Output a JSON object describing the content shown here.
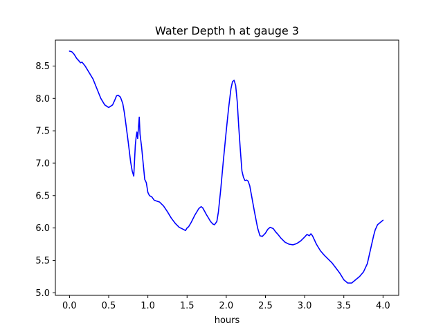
{
  "chart_data": {
    "type": "line",
    "title": "Water Depth h at gauge 3",
    "xlabel": "hours",
    "ylabel": "",
    "xlim": [
      -0.18,
      4.2
    ],
    "ylim": [
      4.96,
      8.9
    ],
    "grid": false,
    "legend": "none",
    "x_ticks": [
      0.0,
      0.5,
      1.0,
      1.5,
      2.0,
      2.5,
      3.0,
      3.5,
      4.0
    ],
    "x_tick_labels": [
      "0.0",
      "0.5",
      "1.0",
      "1.5",
      "2.0",
      "2.5",
      "3.0",
      "3.5",
      "4.0"
    ],
    "y_ticks": [
      5.0,
      5.5,
      6.0,
      6.5,
      7.0,
      7.5,
      8.0,
      8.5
    ],
    "y_tick_labels": [
      "5.0",
      "5.5",
      "6.0",
      "6.5",
      "7.0",
      "7.5",
      "8.0",
      "8.5"
    ],
    "series": [
      {
        "color": "#0000ff",
        "x": [
          0.0,
          0.03,
          0.06,
          0.09,
          0.12,
          0.14,
          0.16,
          0.18,
          0.2,
          0.25,
          0.3,
          0.35,
          0.4,
          0.45,
          0.5,
          0.55,
          0.58,
          0.6,
          0.62,
          0.65,
          0.68,
          0.7,
          0.72,
          0.75,
          0.78,
          0.8,
          0.82,
          0.84,
          0.85,
          0.86,
          0.87,
          0.88,
          0.89,
          0.9,
          0.91,
          0.92,
          0.94,
          0.96,
          0.98,
          1.0,
          1.02,
          1.05,
          1.08,
          1.1,
          1.15,
          1.2,
          1.25,
          1.3,
          1.35,
          1.4,
          1.45,
          1.48,
          1.5,
          1.52,
          1.55,
          1.6,
          1.65,
          1.68,
          1.7,
          1.75,
          1.8,
          1.83,
          1.85,
          1.88,
          1.9,
          1.93,
          1.96,
          2.0,
          2.03,
          2.06,
          2.08,
          2.1,
          2.12,
          2.14,
          2.16,
          2.18,
          2.2,
          2.22,
          2.24,
          2.26,
          2.28,
          2.3,
          2.33,
          2.36,
          2.4,
          2.43,
          2.46,
          2.5,
          2.53,
          2.56,
          2.6,
          2.63,
          2.66,
          2.7,
          2.75,
          2.8,
          2.85,
          2.9,
          2.95,
          3.0,
          3.03,
          3.06,
          3.08,
          3.1,
          3.15,
          3.2,
          3.25,
          3.3,
          3.35,
          3.4,
          3.45,
          3.5,
          3.55,
          3.6,
          3.65,
          3.7,
          3.75,
          3.8,
          3.85,
          3.88,
          3.9,
          3.93,
          3.96,
          4.0
        ],
        "y": [
          8.73,
          8.72,
          8.68,
          8.62,
          8.58,
          8.55,
          8.56,
          8.53,
          8.5,
          8.4,
          8.3,
          8.15,
          8.0,
          7.9,
          7.86,
          7.9,
          7.98,
          8.04,
          8.05,
          8.02,
          7.92,
          7.78,
          7.6,
          7.32,
          7.02,
          6.88,
          6.8,
          7.28,
          7.4,
          7.48,
          7.38,
          7.55,
          7.71,
          7.45,
          7.35,
          7.25,
          7.0,
          6.75,
          6.7,
          6.55,
          6.5,
          6.48,
          6.43,
          6.42,
          6.4,
          6.34,
          6.25,
          6.15,
          6.07,
          6.01,
          5.98,
          5.96,
          6.0,
          6.02,
          6.08,
          6.2,
          6.3,
          6.33,
          6.31,
          6.2,
          6.1,
          6.06,
          6.05,
          6.1,
          6.25,
          6.6,
          7.0,
          7.5,
          7.85,
          8.15,
          8.26,
          8.28,
          8.2,
          7.95,
          7.55,
          7.2,
          6.88,
          6.78,
          6.73,
          6.74,
          6.72,
          6.65,
          6.45,
          6.25,
          6.0,
          5.88,
          5.87,
          5.92,
          5.98,
          6.01,
          5.99,
          5.94,
          5.9,
          5.84,
          5.78,
          5.75,
          5.74,
          5.76,
          5.8,
          5.86,
          5.9,
          5.88,
          5.91,
          5.88,
          5.75,
          5.65,
          5.58,
          5.52,
          5.46,
          5.38,
          5.3,
          5.2,
          5.15,
          5.15,
          5.2,
          5.25,
          5.32,
          5.45,
          5.72,
          5.88,
          5.97,
          6.05,
          6.08,
          6.12
        ]
      }
    ]
  }
}
